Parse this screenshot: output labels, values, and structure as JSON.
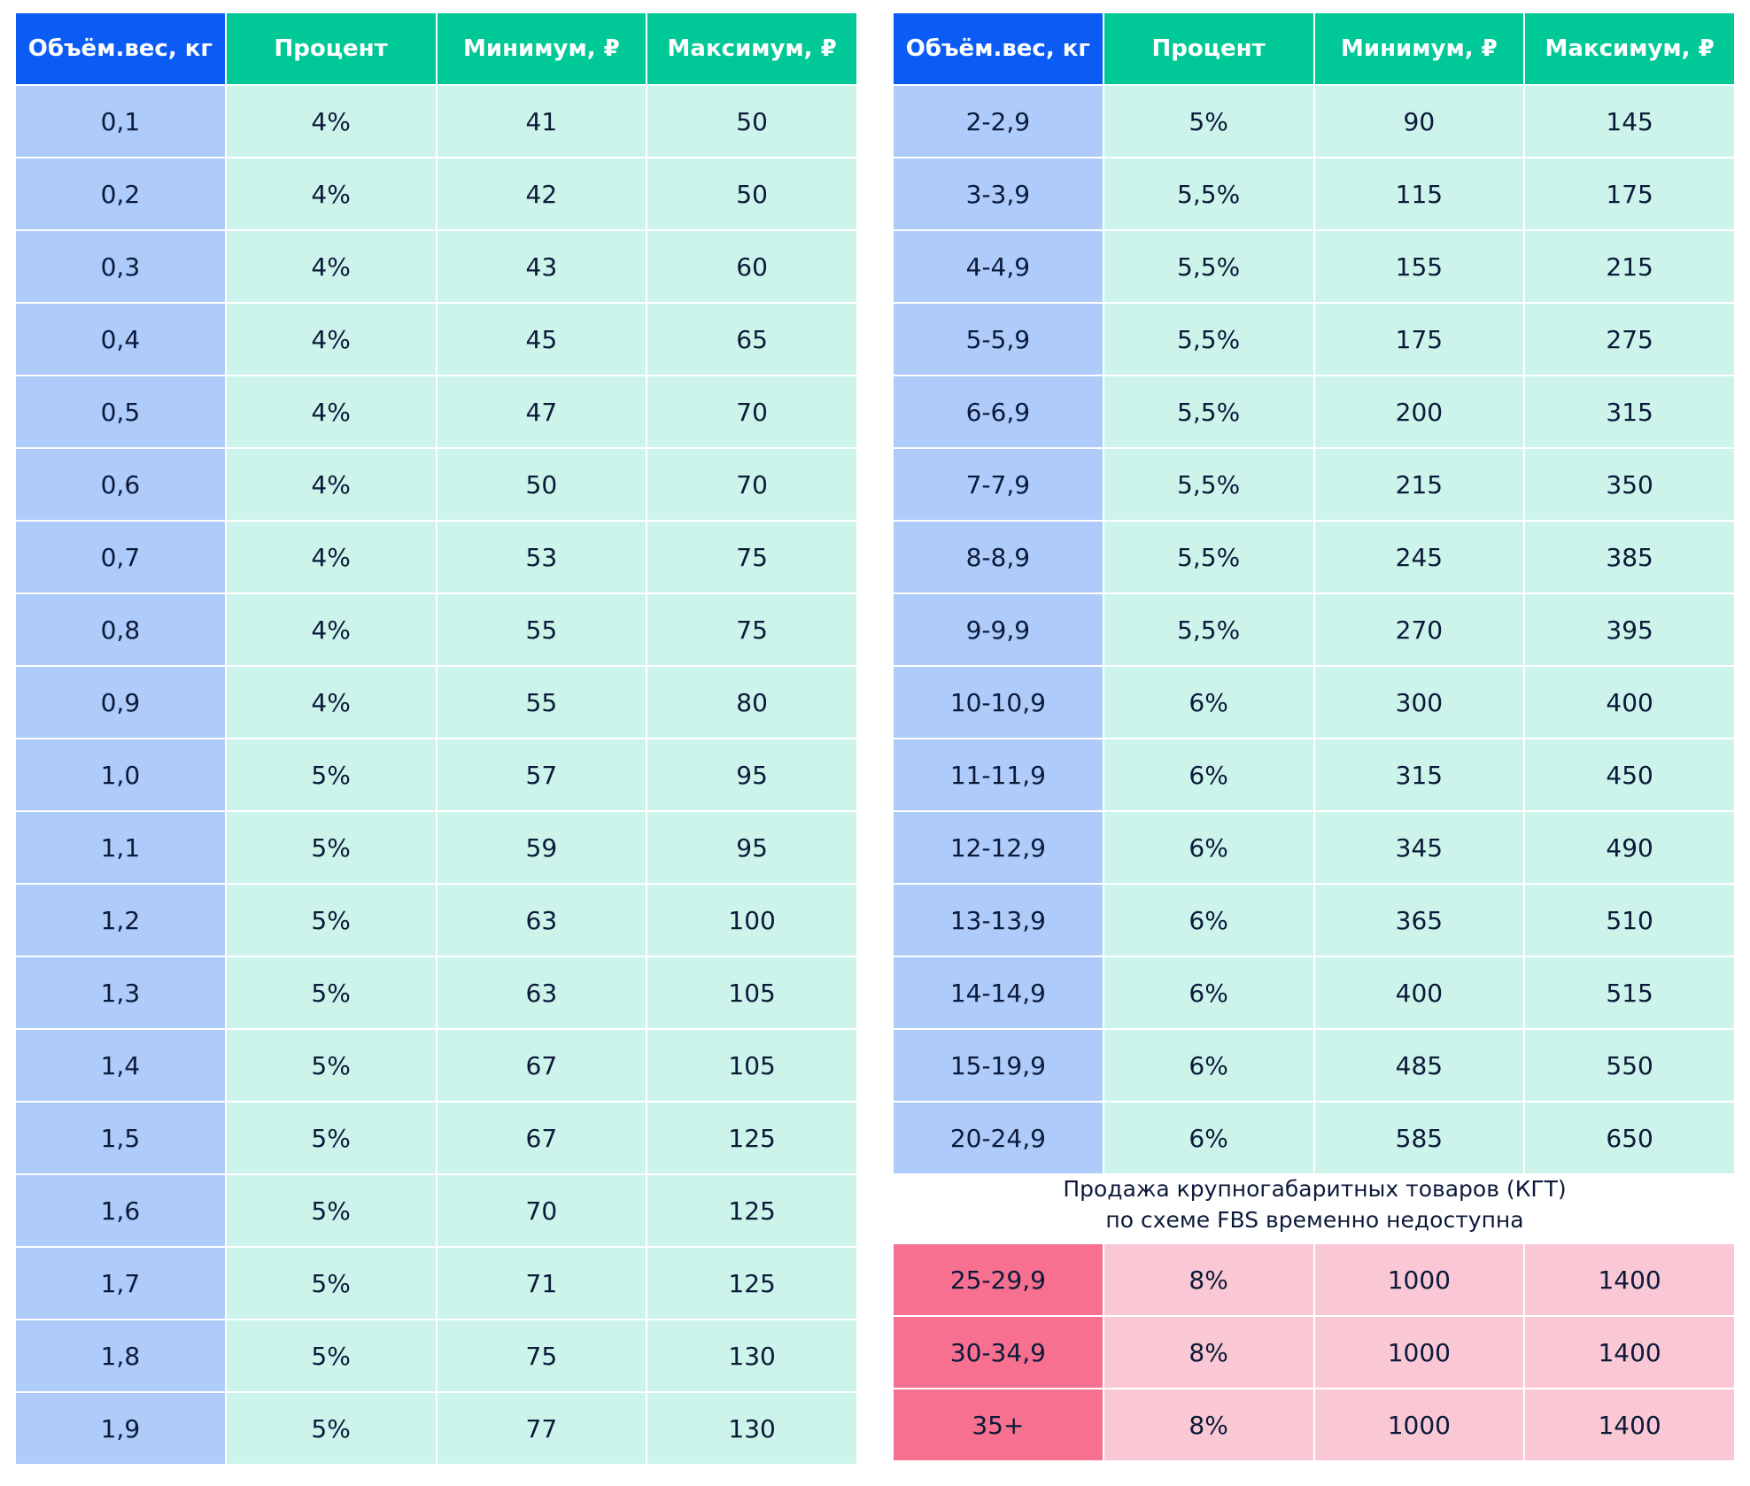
{
  "left_table": {
    "header": [
      "Объём.вес, кг",
      "Процент",
      "Минимум, ₽",
      "Максимум, ₽"
    ],
    "rows": [
      [
        "0,1",
        "4%",
        "41",
        "50"
      ],
      [
        "0,2",
        "4%",
        "42",
        "50"
      ],
      [
        "0,3",
        "4%",
        "43",
        "60"
      ],
      [
        "0,4",
        "4%",
        "45",
        "65"
      ],
      [
        "0,5",
        "4%",
        "47",
        "70"
      ],
      [
        "0,6",
        "4%",
        "50",
        "70"
      ],
      [
        "0,7",
        "4%",
        "53",
        "75"
      ],
      [
        "0,8",
        "4%",
        "55",
        "75"
      ],
      [
        "0,9",
        "4%",
        "55",
        "80"
      ],
      [
        "1,0",
        "5%",
        "57",
        "95"
      ],
      [
        "1,1",
        "5%",
        "59",
        "95"
      ],
      [
        "1,2",
        "5%",
        "63",
        "100"
      ],
      [
        "1,3",
        "5%",
        "63",
        "105"
      ],
      [
        "1,4",
        "5%",
        "67",
        "105"
      ],
      [
        "1,5",
        "5%",
        "67",
        "125"
      ],
      [
        "1,6",
        "5%",
        "70",
        "125"
      ],
      [
        "1,7",
        "5%",
        "71",
        "125"
      ],
      [
        "1,8",
        "5%",
        "75",
        "130"
      ],
      [
        "1,9",
        "5%",
        "77",
        "130"
      ]
    ]
  },
  "right_table": {
    "header": [
      "Объём.вес, кг",
      "Процент",
      "Минимум, ₽",
      "Максимум, ₽"
    ],
    "rows": [
      [
        "2-2,9",
        "5%",
        "90",
        "145"
      ],
      [
        "3-3,9",
        "5,5%",
        "115",
        "175"
      ],
      [
        "4-4,9",
        "5,5%",
        "155",
        "215"
      ],
      [
        "5-5,9",
        "5,5%",
        "175",
        "275"
      ],
      [
        "6-6,9",
        "5,5%",
        "200",
        "315"
      ],
      [
        "7-7,9",
        "5,5%",
        "215",
        "350"
      ],
      [
        "8-8,9",
        "5,5%",
        "245",
        "385"
      ],
      [
        "9-9,9",
        "5,5%",
        "270",
        "395"
      ],
      [
        "10-10,9",
        "6%",
        "300",
        "400"
      ],
      [
        "11-11,9",
        "6%",
        "315",
        "450"
      ],
      [
        "12-12,9",
        "6%",
        "345",
        "490"
      ],
      [
        "13-13,9",
        "6%",
        "365",
        "510"
      ],
      [
        "14-14,9",
        "6%",
        "400",
        "515"
      ],
      [
        "15-19,9",
        "6%",
        "485",
        "550"
      ],
      [
        "20-24,9",
        "6%",
        "585",
        "650"
      ]
    ]
  },
  "note": [
    "Продажа крупногабаритных товаров (КГТ)",
    "по схеме FBS временно недоступна"
  ],
  "oversized_table": {
    "rows": [
      [
        "25-29,9",
        "8%",
        "1000",
        "1400"
      ],
      [
        "30-34,9",
        "8%",
        "1000",
        "1400"
      ],
      [
        "35+",
        "8%",
        "1000",
        "1400"
      ]
    ]
  }
}
